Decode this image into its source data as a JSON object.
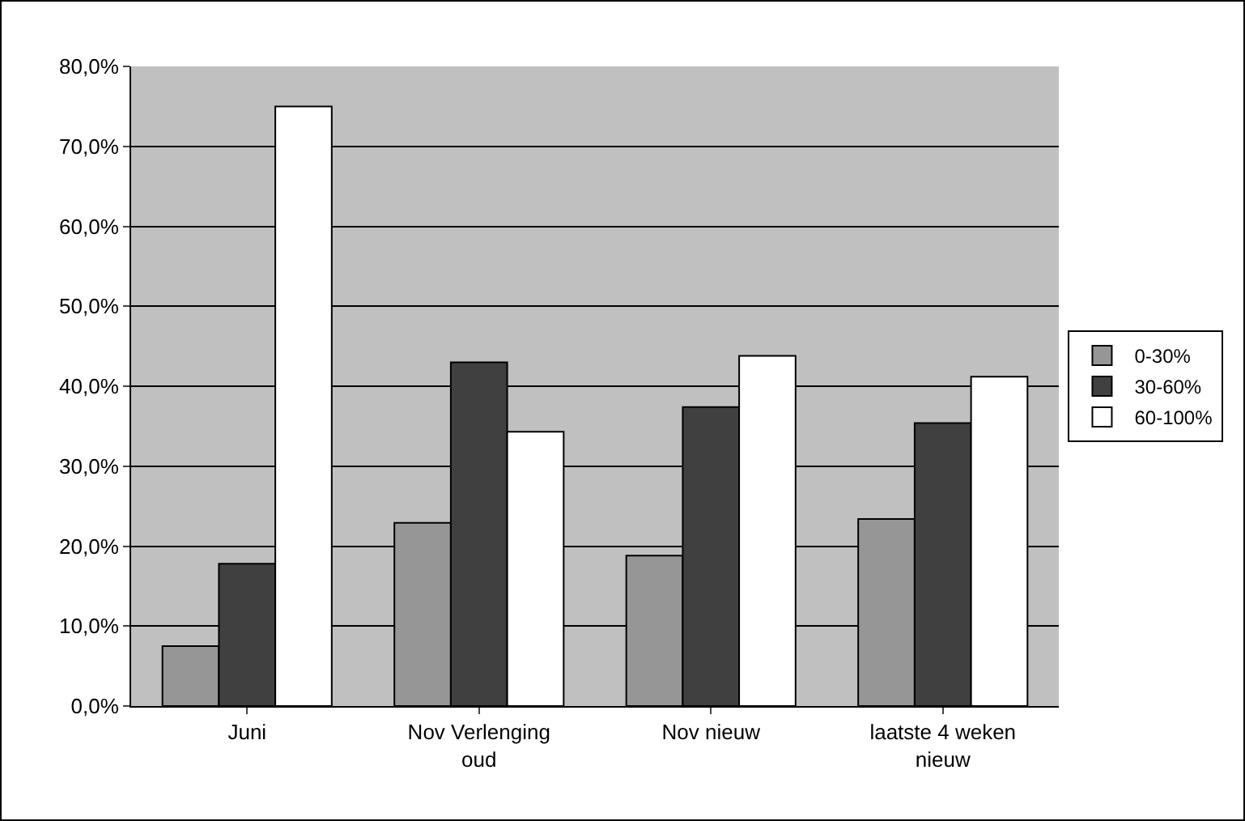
{
  "chart_data": {
    "type": "bar",
    "categories": [
      "Juni",
      "Nov Verlenging oud",
      "Nov nieuw",
      "laatste 4 weken nieuw"
    ],
    "series": [
      {
        "name": "0-30%",
        "color": "#969696",
        "values": [
          7.5,
          22.9,
          18.8,
          23.4
        ]
      },
      {
        "name": "30-60%",
        "color": "#404040",
        "values": [
          17.8,
          43.0,
          37.4,
          35.4
        ]
      },
      {
        "name": "60-100%",
        "color": "#ffffff",
        "values": [
          75.0,
          34.3,
          43.8,
          41.2
        ]
      }
    ],
    "ylim": [
      0,
      80
    ],
    "yticks": [
      {
        "value": 0,
        "label": "0,0%"
      },
      {
        "value": 10,
        "label": "10,0%"
      },
      {
        "value": 20,
        "label": "20,0%"
      },
      {
        "value": 30,
        "label": "30,0%"
      },
      {
        "value": 40,
        "label": "40,0%"
      },
      {
        "value": 50,
        "label": "50,0%"
      },
      {
        "value": 60,
        "label": "60,0%"
      },
      {
        "value": 70,
        "label": "70,0%"
      },
      {
        "value": 80,
        "label": "80,0%"
      }
    ],
    "grid": "y",
    "legend": "right"
  }
}
